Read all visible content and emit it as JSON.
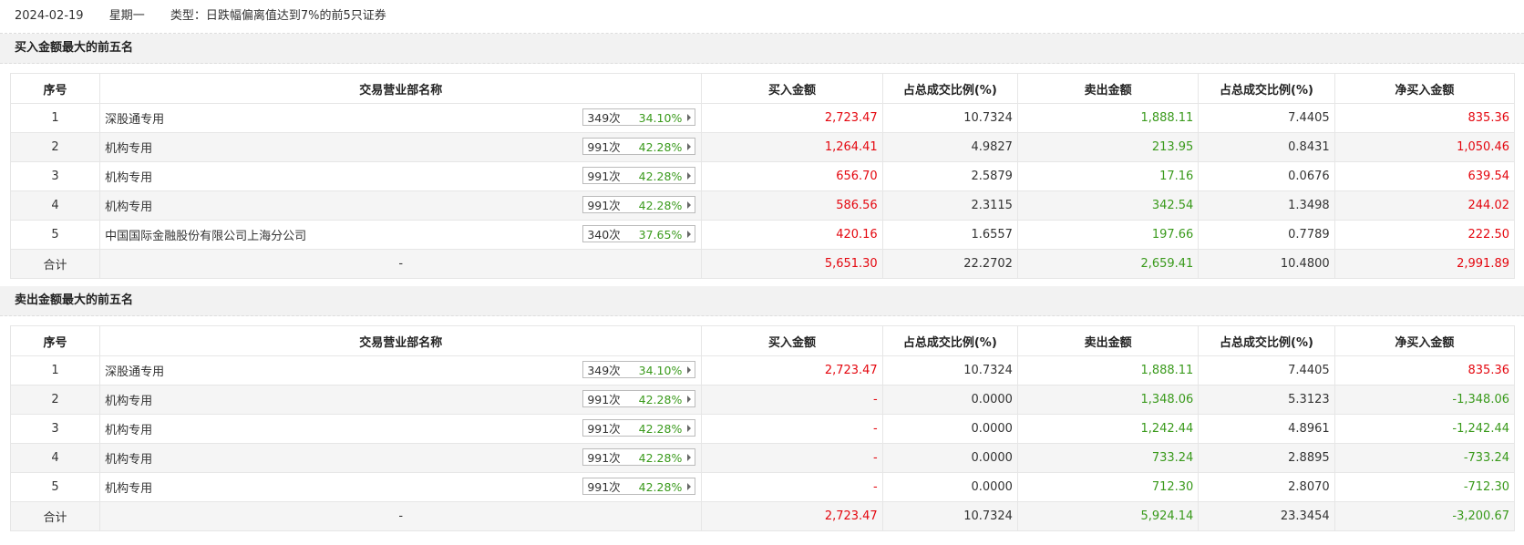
{
  "info": {
    "date": "2024-02-19",
    "weekday": "星期一",
    "type_label": "类型：日跌幅偏离值达到7%的前5只证券"
  },
  "columns": {
    "seq": "序号",
    "name": "交易营业部名称",
    "buy": "买入金额",
    "buy_pct": "占总成交比例(%)",
    "sell": "卖出金额",
    "sell_pct": "占总成交比例(%)",
    "net": "净买入金额"
  },
  "colors": {
    "up": "#e4070f",
    "down": "#3a9a1c"
  },
  "buy_section": {
    "title": "买入金额最大的前五名",
    "rows": [
      {
        "seq": "1",
        "name": "深股通专用",
        "times": "349次",
        "rate": "34.10%",
        "buy": "2,723.47",
        "buy_pct": "10.7324",
        "sell": "1,888.11",
        "sell_pct": "7.4405",
        "net": "835.36"
      },
      {
        "seq": "2",
        "name": "机构专用",
        "times": "991次",
        "rate": "42.28%",
        "buy": "1,264.41",
        "buy_pct": "4.9827",
        "sell": "213.95",
        "sell_pct": "0.8431",
        "net": "1,050.46"
      },
      {
        "seq": "3",
        "name": "机构专用",
        "times": "991次",
        "rate": "42.28%",
        "buy": "656.70",
        "buy_pct": "2.5879",
        "sell": "17.16",
        "sell_pct": "0.0676",
        "net": "639.54"
      },
      {
        "seq": "4",
        "name": "机构专用",
        "times": "991次",
        "rate": "42.28%",
        "buy": "586.56",
        "buy_pct": "2.3115",
        "sell": "342.54",
        "sell_pct": "1.3498",
        "net": "244.02"
      },
      {
        "seq": "5",
        "name": "中国国际金融股份有限公司上海分公司",
        "times": "340次",
        "rate": "37.65%",
        "buy": "420.16",
        "buy_pct": "1.6557",
        "sell": "197.66",
        "sell_pct": "0.7789",
        "net": "222.50"
      }
    ],
    "total": {
      "label": "合计",
      "name": "-",
      "buy": "5,651.30",
      "buy_pct": "22.2702",
      "sell": "2,659.41",
      "sell_pct": "10.4800",
      "net": "2,991.89"
    }
  },
  "sell_section": {
    "title": "卖出金额最大的前五名",
    "rows": [
      {
        "seq": "1",
        "name": "深股通专用",
        "times": "349次",
        "rate": "34.10%",
        "buy": "2,723.47",
        "buy_pct": "10.7324",
        "sell": "1,888.11",
        "sell_pct": "7.4405",
        "net": "835.36"
      },
      {
        "seq": "2",
        "name": "机构专用",
        "times": "991次",
        "rate": "42.28%",
        "buy": "-",
        "buy_pct": "0.0000",
        "sell": "1,348.06",
        "sell_pct": "5.3123",
        "net": "-1,348.06"
      },
      {
        "seq": "3",
        "name": "机构专用",
        "times": "991次",
        "rate": "42.28%",
        "buy": "-",
        "buy_pct": "0.0000",
        "sell": "1,242.44",
        "sell_pct": "4.8961",
        "net": "-1,242.44"
      },
      {
        "seq": "4",
        "name": "机构专用",
        "times": "991次",
        "rate": "42.28%",
        "buy": "-",
        "buy_pct": "0.0000",
        "sell": "733.24",
        "sell_pct": "2.8895",
        "net": "-733.24"
      },
      {
        "seq": "5",
        "name": "机构专用",
        "times": "991次",
        "rate": "42.28%",
        "buy": "-",
        "buy_pct": "0.0000",
        "sell": "712.30",
        "sell_pct": "2.8070",
        "net": "-712.30"
      }
    ],
    "total": {
      "label": "合计",
      "name": "-",
      "buy": "2,723.47",
      "buy_pct": "10.7324",
      "sell": "5,924.14",
      "sell_pct": "23.3454",
      "net": "-3,200.67"
    }
  }
}
